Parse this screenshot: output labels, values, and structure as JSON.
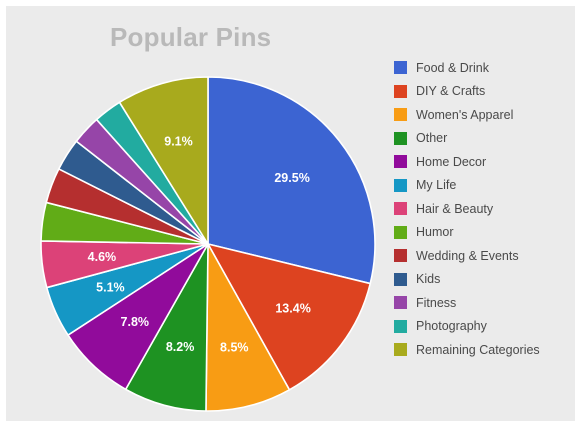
{
  "chart_data": {
    "type": "pie",
    "title": "Popular Pins",
    "legend_position": "right",
    "slices": [
      {
        "name": "Food & Drink",
        "value": 29.5,
        "label": "29.5%",
        "color": "#3c64d2"
      },
      {
        "name": "DIY & Crafts",
        "value": 13.4,
        "label": "13.4%",
        "color": "#dd4320"
      },
      {
        "name": "Women's Apparel",
        "value": 8.5,
        "label": "8.5%",
        "color": "#f89c14"
      },
      {
        "name": "Other",
        "value": 8.2,
        "label": "8.2%",
        "color": "#1e9222"
      },
      {
        "name": "Home Decor",
        "value": 7.8,
        "label": "7.8%",
        "color": "#910b9b"
      },
      {
        "name": "My Life",
        "value": 5.1,
        "label": "5.1%",
        "color": "#1597c5"
      },
      {
        "name": "Hair & Beauty",
        "value": 4.6,
        "label": "4.6%",
        "color": "#dc4278"
      },
      {
        "name": "Humor",
        "value": 3.8,
        "label": "",
        "color": "#61ac17"
      },
      {
        "name": "Wedding & Events",
        "value": 3.5,
        "label": "",
        "color": "#b52f2f"
      },
      {
        "name": "Kids",
        "value": 3.2,
        "label": "",
        "color": "#2f5b8f"
      },
      {
        "name": "Fitness",
        "value": 2.9,
        "label": "",
        "color": "#9645a8"
      },
      {
        "name": "Photography",
        "value": 2.8,
        "label": "",
        "color": "#22aba0"
      },
      {
        "name": "Remaining Categories",
        "value": 9.1,
        "label": "9.1%",
        "color": "#a8aa1d"
      }
    ]
  }
}
